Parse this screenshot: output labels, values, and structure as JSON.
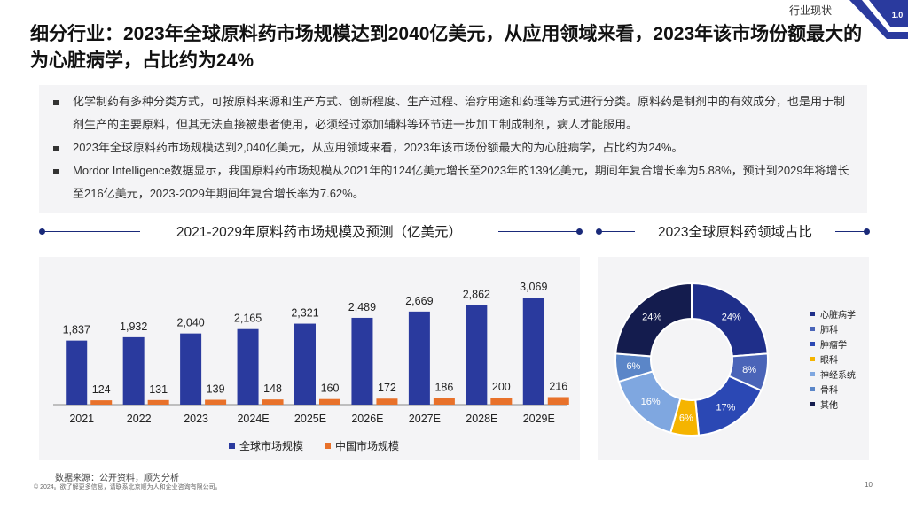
{
  "header": {
    "section_tag": "行业现状",
    "badge": "1.0",
    "title": "细分行业：2023年全球原料药市场规模达到2040亿美元，从应用领域来看，2023年该市场份额最大的为心脏病学，占比约为24%"
  },
  "bullets": [
    "化学制药有多种分类方式，可按原料来源和生产方式、创新程度、生产过程、治疗用途和药理等方式进行分类。原料药是制剂中的有效成分，也是用于制剂生产的主要原料，但其无法直接被患者使用，必须经过添加辅料等环节进一步加工制成制剂，病人才能服用。",
    "2023年全球原料药市场规模达到2,040亿美元，从应用领域来看，2023年该市场份额最大的为心脏病学，占比约为24%。",
    "Mordor Intelligence数据显示，我国原料药市场规模从2021年的124亿美元增长至2023年的139亿美元，期间年复合增长率为5.88%，预计到2029年将增长至216亿美元，2023-2029年期间年复合增长率为7.62%。"
  ],
  "footer": {
    "source": "数据来源：公开资料，顺为分析",
    "copyright": "© 2024。欲了解更多信息，请联系北京顺为人和企业咨询有限公司。",
    "page": "10"
  },
  "chart_data": [
    {
      "type": "bar",
      "title": "2021-2029年原料药市场规模及预测（亿美元）",
      "categories": [
        "2021",
        "2022",
        "2023",
        "2024E",
        "2025E",
        "2026E",
        "2027E",
        "2028E",
        "2029E"
      ],
      "series": [
        {
          "name": "全球市场规模",
          "color": "#2a3a9e",
          "values": [
            1837,
            1932,
            2040,
            2165,
            2321,
            2489,
            2669,
            2862,
            3069
          ]
        },
        {
          "name": "中国市场规模",
          "color": "#e8712a",
          "values": [
            124,
            131,
            139,
            148,
            160,
            172,
            186,
            200,
            216
          ]
        }
      ],
      "value_labels": {
        "全球市场规模": [
          "1,837",
          "1,932",
          "2,040",
          "2,165",
          "2,321",
          "2,489",
          "2,669",
          "2,862",
          "3,069"
        ],
        "中国市场规模": [
          "124",
          "131",
          "139",
          "148",
          "160",
          "172",
          "186",
          "200",
          "216"
        ]
      },
      "ylim": [
        0,
        3300
      ],
      "legend": "bottom"
    },
    {
      "type": "pie",
      "title": "2023全球原料药领域占比",
      "slices": [
        {
          "name": "心脏病学",
          "value": 24,
          "label": "24%",
          "color": "#1f2f8a"
        },
        {
          "name": "肺科",
          "value": 8,
          "label": "8%",
          "color": "#4a64b8"
        },
        {
          "name": "肿瘤学",
          "value": 17,
          "label": "17%",
          "color": "#2b48b4"
        },
        {
          "name": "眼科",
          "value": 6,
          "label": "6%",
          "color": "#f5b400"
        },
        {
          "name": "神经系统",
          "value": 16,
          "label": "16%",
          "color": "#7fa7e0"
        },
        {
          "name": "骨科",
          "value": 6,
          "label": "6%",
          "color": "#5b86c8"
        },
        {
          "name": "其他",
          "value": 24,
          "label": "24%",
          "color": "#141c4e"
        }
      ],
      "legend": "right"
    }
  ]
}
